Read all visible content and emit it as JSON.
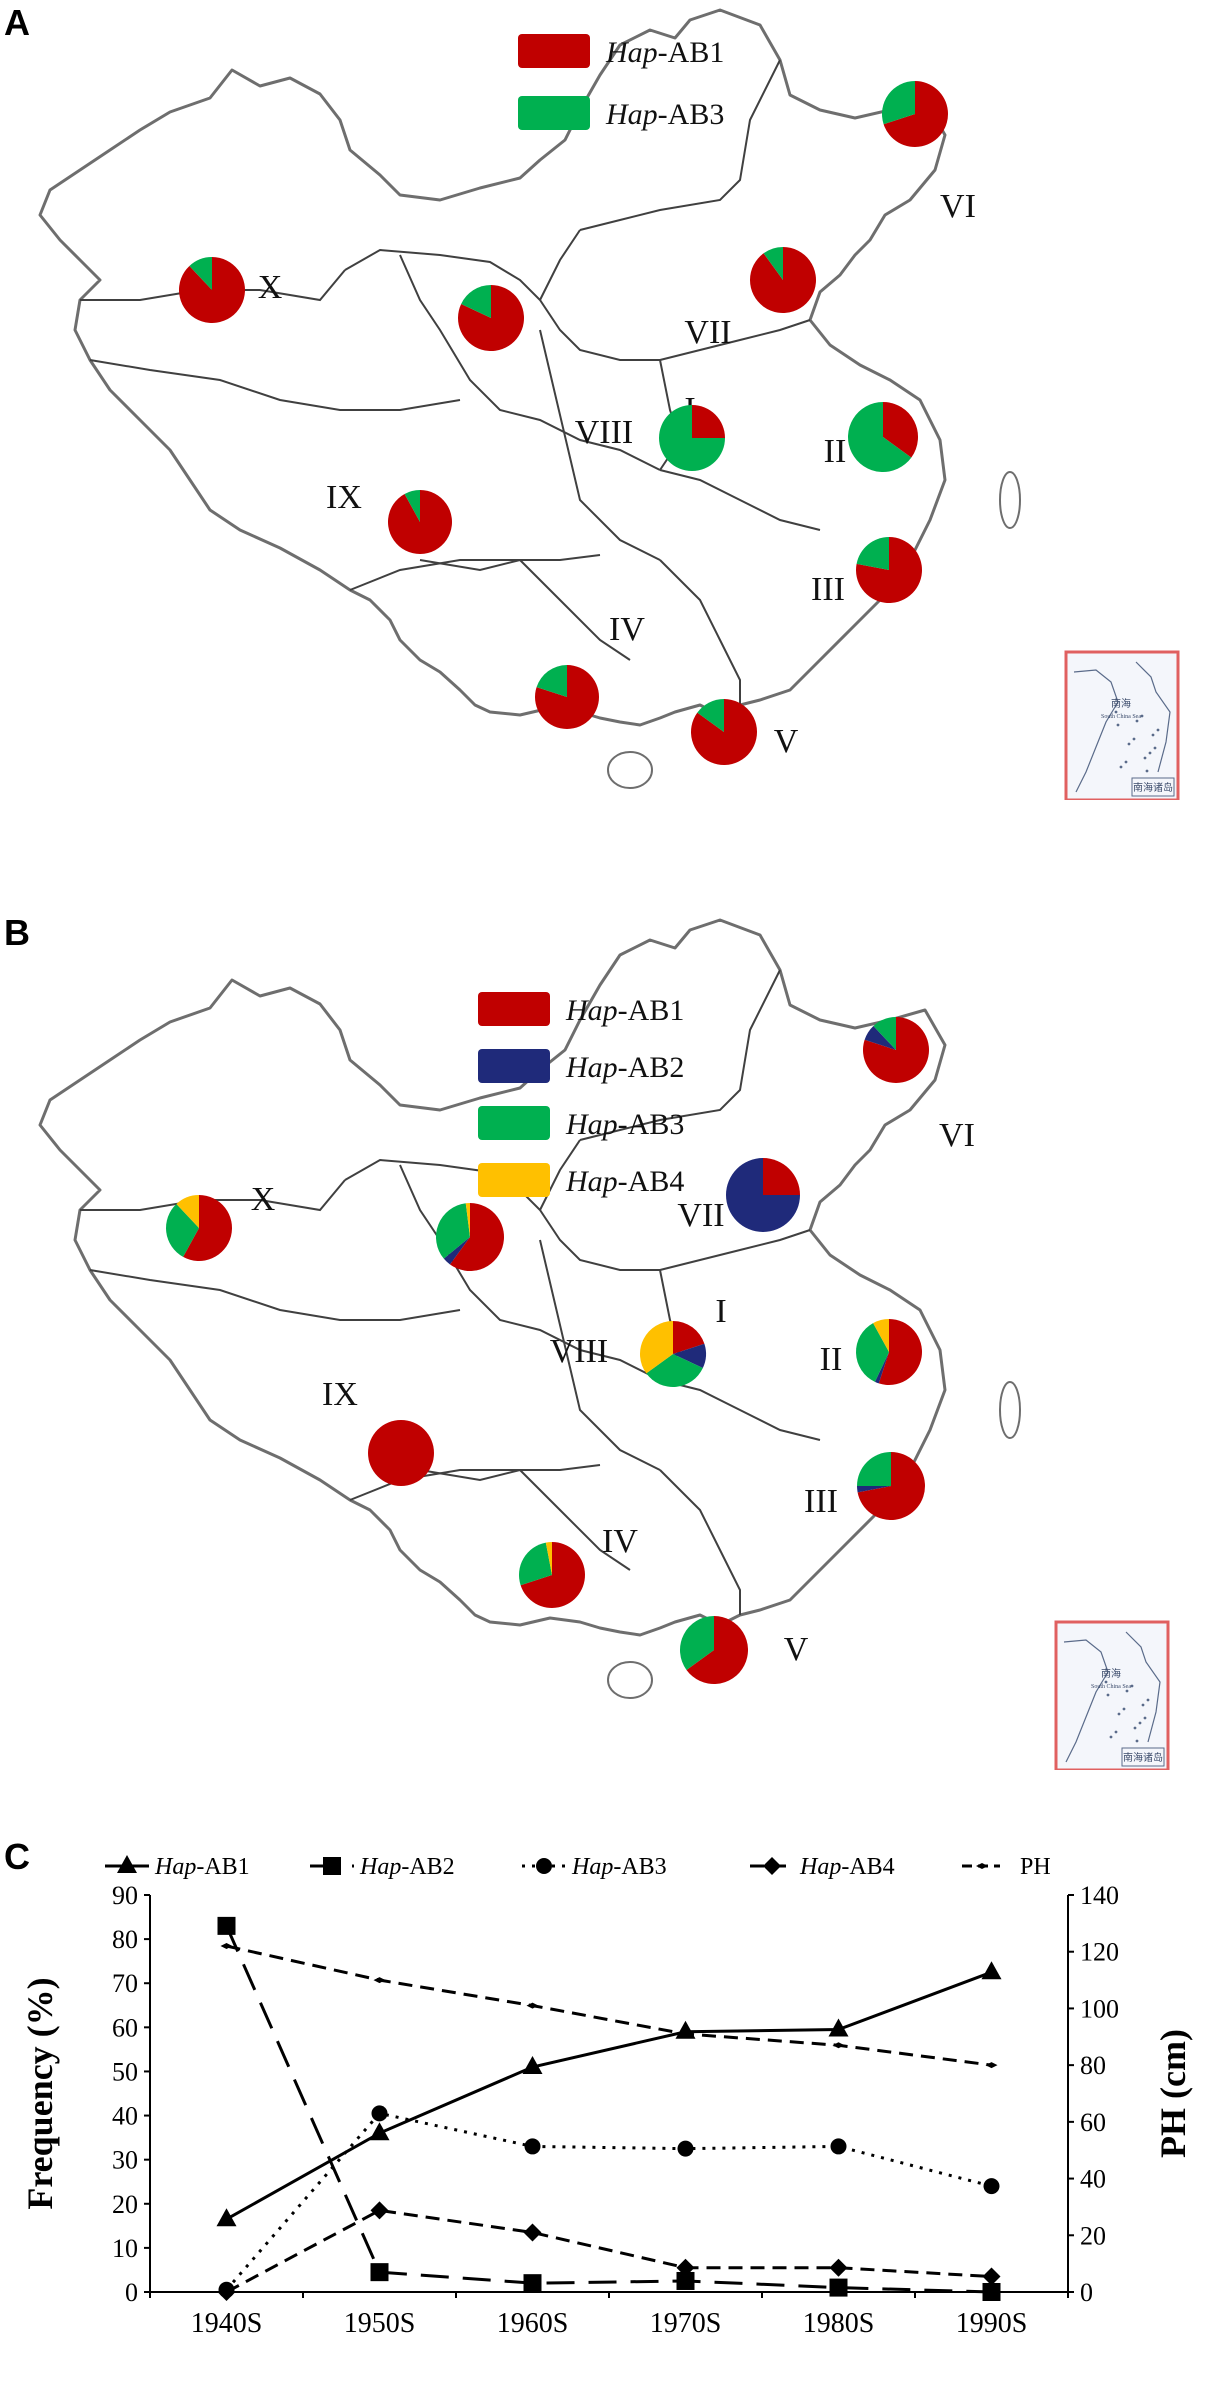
{
  "colors": {
    "Hap-AB1": "#c00000",
    "Hap-AB2": "#1f2a7a",
    "Hap-AB3": "#00b050",
    "Hap-AB4": "#ffc000",
    "border": "#6e6e6e",
    "inset_frame": "#e06060"
  },
  "panels": [
    {
      "letter": "A",
      "legend": [
        {
          "italic": "Hap",
          "suffix": "-AB1",
          "key": "Hap-AB1"
        },
        {
          "italic": "Hap",
          "suffix": "-AB3",
          "key": "Hap-AB3"
        }
      ],
      "regions": [
        {
          "label": "I",
          "pie": {
            "Hap-AB1": 25,
            "Hap-AB3": 75
          }
        },
        {
          "label": "II",
          "pie": {
            "Hap-AB1": 35,
            "Hap-AB3": 65
          }
        },
        {
          "label": "III",
          "pie": {
            "Hap-AB1": 78,
            "Hap-AB3": 22
          }
        },
        {
          "label": "IV",
          "pie": {
            "Hap-AB1": 80,
            "Hap-AB3": 20
          }
        },
        {
          "label": "V",
          "pie": {
            "Hap-AB1": 85,
            "Hap-AB3": 15
          }
        },
        {
          "label": "VI",
          "pie": {
            "Hap-AB1": 70,
            "Hap-AB3": 30
          }
        },
        {
          "label": "VII",
          "pie": {
            "Hap-AB1": 90,
            "Hap-AB3": 10
          }
        },
        {
          "label": "VIII",
          "pie": null
        },
        {
          "label": "IX",
          "pie": {
            "Hap-AB1": 92,
            "Hap-AB3": 8
          }
        },
        {
          "label": "X",
          "pie": {
            "Hap-AB1": 88,
            "Hap-AB3": 12
          }
        },
        {
          "label": "",
          "pie": {
            "Hap-AB1": 82,
            "Hap-AB3": 18
          }
        }
      ],
      "inset": {
        "title": "南海诸岛",
        "sea": "南海",
        "sea_en": "South China Sea"
      }
    },
    {
      "letter": "B",
      "legend": [
        {
          "italic": "Hap",
          "suffix": "-AB1",
          "key": "Hap-AB1"
        },
        {
          "italic": "Hap",
          "suffix": "-AB2",
          "key": "Hap-AB2"
        },
        {
          "italic": "Hap",
          "suffix": "-AB3",
          "key": "Hap-AB3"
        },
        {
          "italic": "Hap",
          "suffix": "-AB4",
          "key": "Hap-AB4"
        }
      ],
      "regions": [
        {
          "label": "I",
          "pie": {
            "Hap-AB1": 20,
            "Hap-AB2": 12,
            "Hap-AB3": 33,
            "Hap-AB4": 35
          }
        },
        {
          "label": "II",
          "pie": {
            "Hap-AB1": 55,
            "Hap-AB2": 2,
            "Hap-AB3": 35,
            "Hap-AB4": 8
          }
        },
        {
          "label": "III",
          "pie": {
            "Hap-AB1": 72,
            "Hap-AB2": 3,
            "Hap-AB3": 25,
            "Hap-AB4": 0
          }
        },
        {
          "label": "IV",
          "pie": {
            "Hap-AB1": 70,
            "Hap-AB2": 0,
            "Hap-AB3": 27,
            "Hap-AB4": 3
          }
        },
        {
          "label": "V",
          "pie": {
            "Hap-AB1": 65,
            "Hap-AB2": 0,
            "Hap-AB3": 35,
            "Hap-AB4": 0
          }
        },
        {
          "label": "VI",
          "pie": {
            "Hap-AB1": 80,
            "Hap-AB2": 8,
            "Hap-AB3": 12,
            "Hap-AB4": 0
          }
        },
        {
          "label": "VII",
          "pie": {
            "Hap-AB1": 25,
            "Hap-AB2": 75,
            "Hap-AB3": 0,
            "Hap-AB4": 0
          }
        },
        {
          "label": "VIII",
          "pie": null
        },
        {
          "label": "IX",
          "pie": {
            "Hap-AB1": 100,
            "Hap-AB2": 0,
            "Hap-AB3": 0,
            "Hap-AB4": 0
          }
        },
        {
          "label": "X",
          "pie": {
            "Hap-AB1": 58,
            "Hap-AB2": 0,
            "Hap-AB3": 30,
            "Hap-AB4": 12
          }
        },
        {
          "label": "",
          "pie": {
            "Hap-AB1": 60,
            "Hap-AB2": 4,
            "Hap-AB3": 34,
            "Hap-AB4": 2
          }
        }
      ],
      "inset": {
        "title": "南海诸岛",
        "sea": "南海",
        "sea_en": "South China Sea"
      }
    }
  ],
  "chart_data": {
    "type": "line",
    "panel_letter": "C",
    "categories": [
      "1940S",
      "1950S",
      "1960S",
      "1970S",
      "1980S",
      "1990S"
    ],
    "ylabel": "Frequency (%)",
    "ylim": [
      0,
      90
    ],
    "yticks": [
      0,
      10,
      20,
      30,
      40,
      50,
      60,
      70,
      80,
      90
    ],
    "y2label": "PH (cm)",
    "y2lim": [
      0,
      140
    ],
    "y2ticks": [
      0,
      20,
      40,
      60,
      80,
      100,
      120,
      140
    ],
    "legend_position": "top",
    "series": [
      {
        "name": "Hap-AB1",
        "name_italic": "Hap",
        "name_suffix": "-AB1",
        "axis": "left",
        "marker": "triangle",
        "dash": "solid",
        "values": [
          16.5,
          36,
          51,
          59,
          59.5,
          72.5
        ]
      },
      {
        "name": "Hap-AB2",
        "name_italic": "Hap",
        "name_suffix": "-AB2",
        "axis": "left",
        "marker": "square",
        "dash": "longdash",
        "values": [
          83,
          4.5,
          2,
          2.5,
          1,
          0
        ]
      },
      {
        "name": "Hap-AB3",
        "name_italic": "Hap",
        "name_suffix": "-AB3",
        "axis": "left",
        "marker": "circle",
        "dash": "dotted",
        "values": [
          0.5,
          40.5,
          33,
          32.5,
          33,
          24
        ]
      },
      {
        "name": "Hap-AB4",
        "name_italic": "Hap",
        "name_suffix": "-AB4",
        "axis": "left",
        "marker": "diamond",
        "dash": "dash",
        "values": [
          0,
          18.5,
          13.5,
          5.5,
          5.5,
          3.5
        ]
      },
      {
        "name": "PH",
        "name_italic": "",
        "name_suffix": "PH",
        "axis": "right",
        "marker": "dash-marker",
        "dash": "dash",
        "values": [
          122,
          110,
          101,
          91,
          87,
          80
        ]
      }
    ]
  }
}
